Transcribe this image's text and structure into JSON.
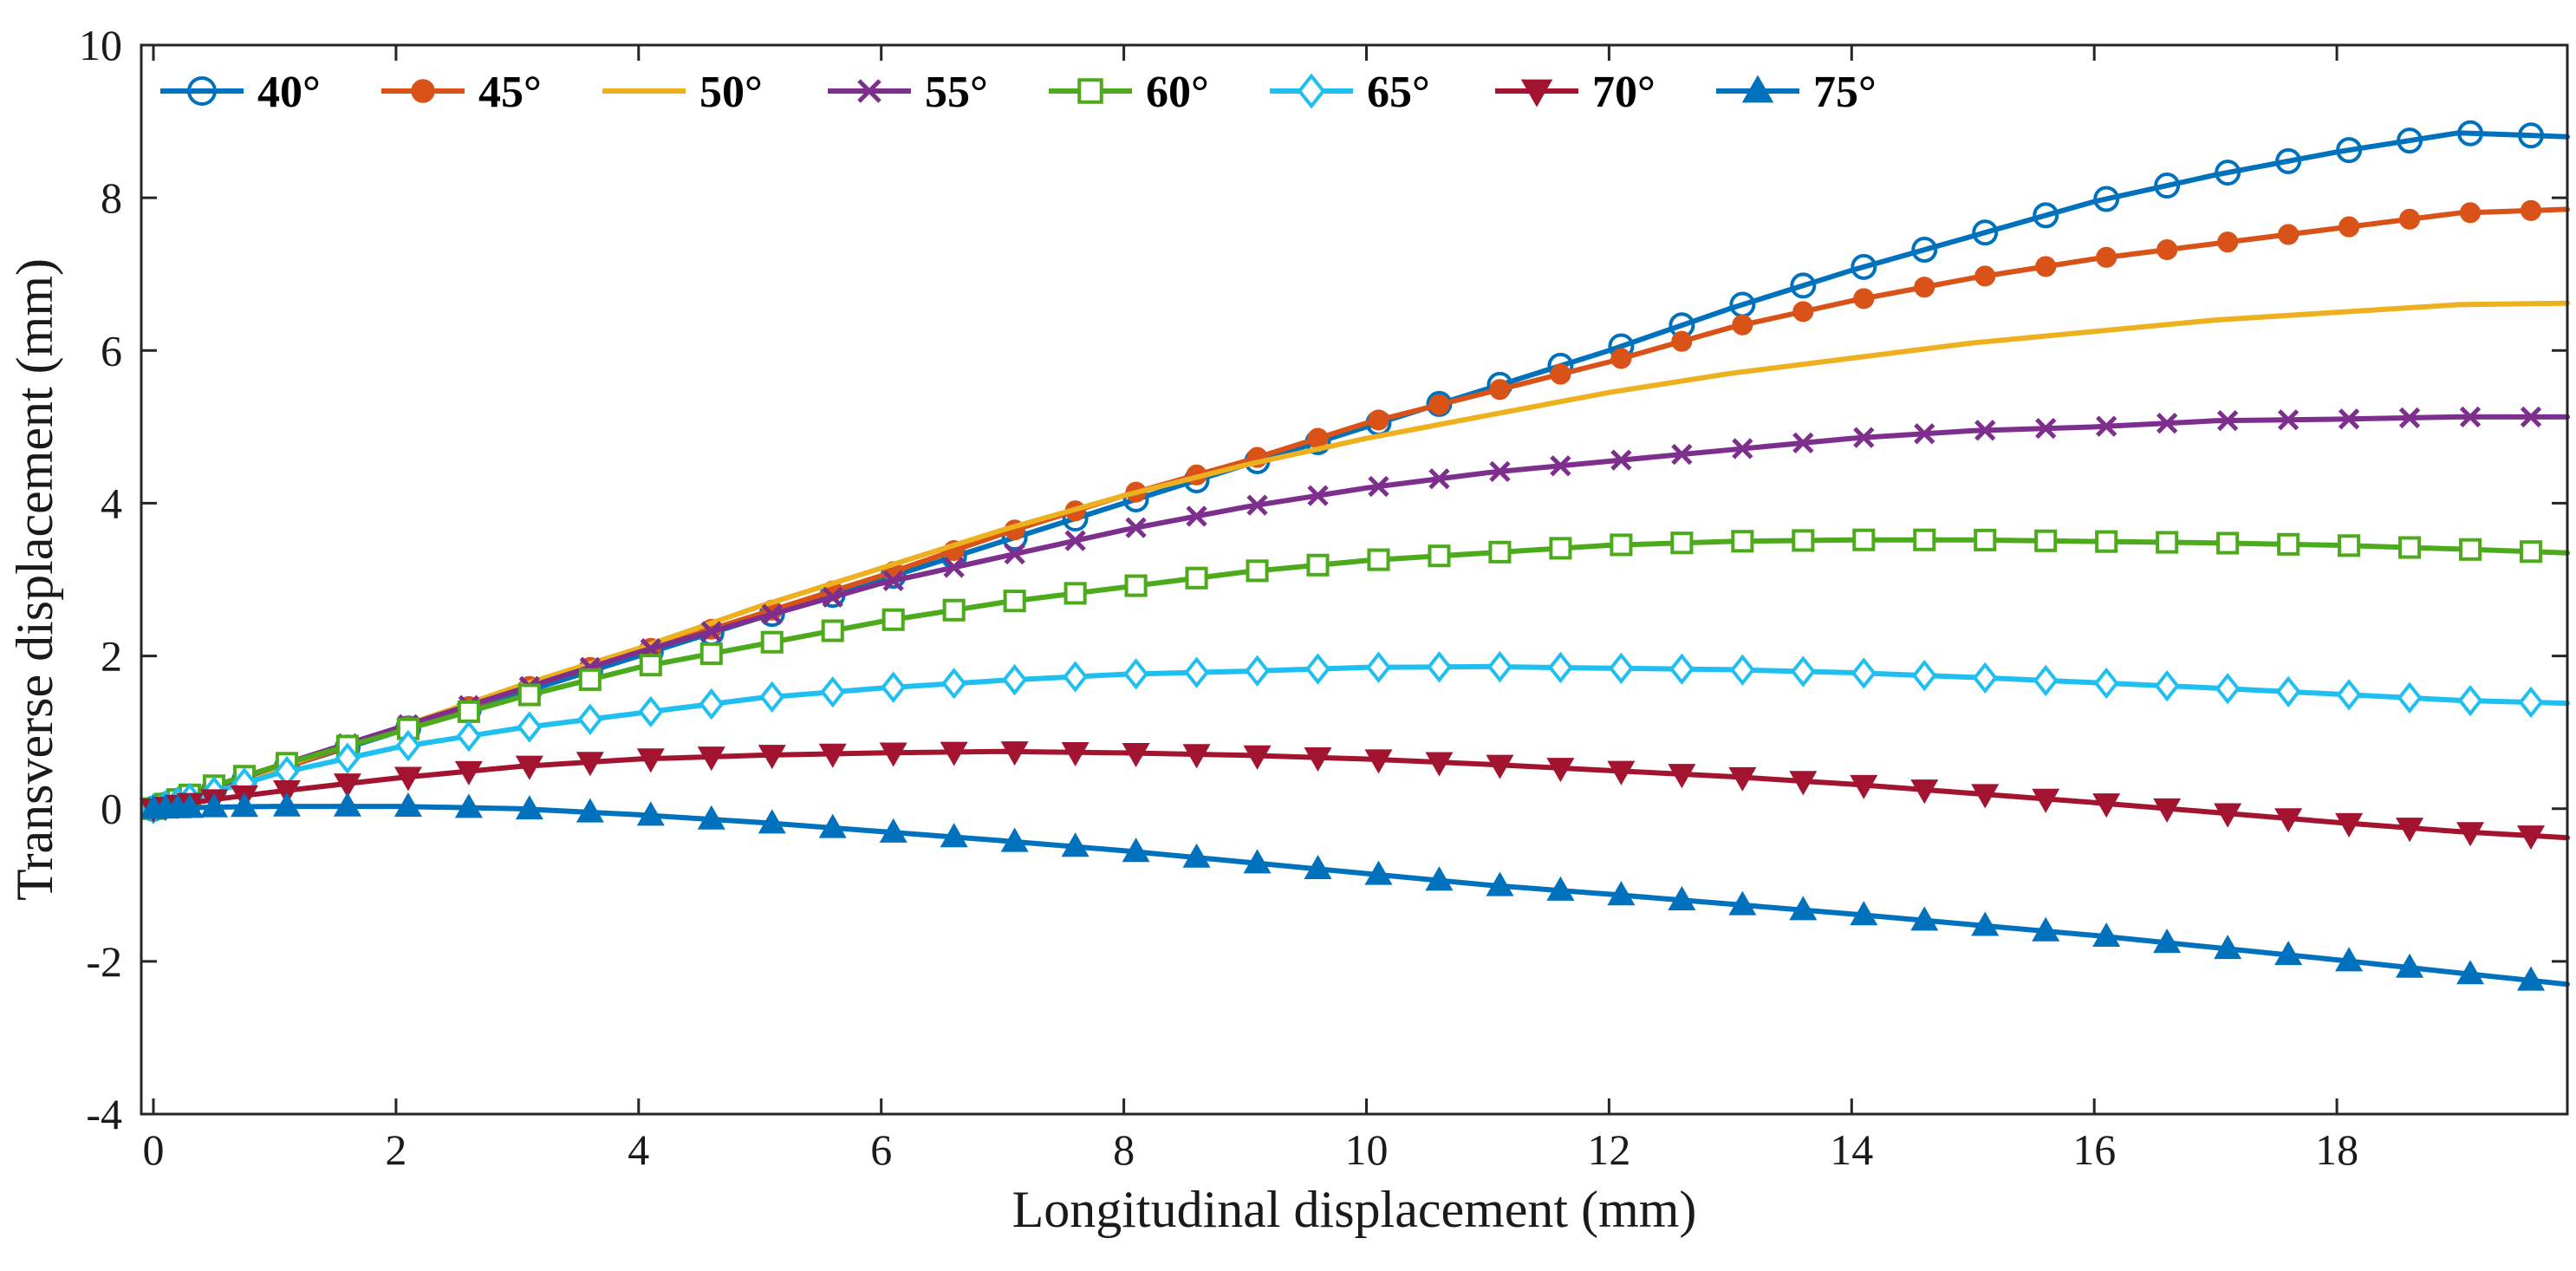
{
  "chart_data": {
    "type": "line",
    "title": "",
    "xlabel": "Longitudinal displacement  (mm)",
    "ylabel": "Transverse displacement  (mm)",
    "xlim": [
      -0.1,
      19.9
    ],
    "ylim": [
      -4,
      10
    ],
    "xticks": [
      0,
      2,
      4,
      6,
      8,
      10,
      12,
      14,
      16,
      18
    ],
    "yticks": [
      -4,
      -2,
      0,
      2,
      4,
      6,
      8,
      10
    ],
    "legend_position": "top-left",
    "series": [
      {
        "name": "40°",
        "color": "#0072BD",
        "marker": "circle",
        "x": [
          0,
          0.5,
          1,
          2,
          3,
          4,
          5,
          6,
          7,
          8,
          9,
          10,
          11,
          12,
          13,
          14,
          15,
          16,
          17,
          18,
          19,
          19.9
        ],
        "y": [
          0,
          0.25,
          0.5,
          1.0,
          1.5,
          2.0,
          2.5,
          3.0,
          3.5,
          4.0,
          4.5,
          5.0,
          5.5,
          6.0,
          6.55,
          7.05,
          7.5,
          7.95,
          8.3,
          8.6,
          8.85,
          8.8
        ]
      },
      {
        "name": "45°",
        "color": "#D95319",
        "marker": "dot",
        "x": [
          0,
          0.5,
          1,
          2,
          3,
          4,
          5,
          6,
          7,
          8,
          9,
          10,
          11,
          12,
          13,
          14,
          15,
          16,
          17,
          18,
          19,
          19.9
        ],
        "y": [
          0,
          0.25,
          0.5,
          1.02,
          1.55,
          2.05,
          2.55,
          3.05,
          3.6,
          4.1,
          4.55,
          5.05,
          5.45,
          5.85,
          6.3,
          6.65,
          6.95,
          7.2,
          7.4,
          7.6,
          7.8,
          7.85
        ]
      },
      {
        "name": "50°",
        "color": "#EDB120",
        "marker": "none",
        "x": [
          0,
          0.5,
          1,
          2,
          3,
          4,
          5,
          6,
          7,
          8,
          9,
          10,
          11,
          12,
          13,
          14,
          15,
          16,
          17,
          18,
          19,
          19.9
        ],
        "y": [
          0,
          0.26,
          0.52,
          1.05,
          1.6,
          2.1,
          2.65,
          3.15,
          3.65,
          4.1,
          4.5,
          4.85,
          5.15,
          5.45,
          5.7,
          5.9,
          6.1,
          6.25,
          6.4,
          6.5,
          6.6,
          6.62
        ]
      },
      {
        "name": "55°",
        "color": "#7E2F8E",
        "marker": "x",
        "x": [
          0,
          0.5,
          1,
          2,
          3,
          4,
          5,
          6,
          7,
          8,
          9,
          10,
          11,
          12,
          13,
          14,
          15,
          16,
          17,
          18,
          19,
          19.9
        ],
        "y": [
          0,
          0.27,
          0.55,
          1.05,
          1.55,
          2.05,
          2.5,
          2.95,
          3.3,
          3.65,
          3.95,
          4.2,
          4.4,
          4.55,
          4.7,
          4.85,
          4.95,
          5.0,
          5.08,
          5.1,
          5.13,
          5.13
        ]
      },
      {
        "name": "60°",
        "color": "#4DAA1C",
        "marker": "square",
        "x": [
          0,
          0.5,
          1,
          2,
          3,
          4,
          5,
          6,
          7,
          8,
          9,
          10,
          11,
          12,
          13,
          14,
          15,
          16,
          17,
          18,
          19,
          19.9
        ],
        "y": [
          0,
          0.3,
          0.55,
          1.0,
          1.45,
          1.85,
          2.15,
          2.45,
          2.7,
          2.9,
          3.1,
          3.25,
          3.35,
          3.45,
          3.5,
          3.52,
          3.52,
          3.5,
          3.48,
          3.45,
          3.4,
          3.35
        ]
      },
      {
        "name": "65°",
        "color": "#1FBFEF",
        "marker": "diamond",
        "x": [
          0,
          0.5,
          1,
          2,
          3,
          4,
          5,
          6,
          7,
          8,
          9,
          10,
          11,
          12,
          13,
          14,
          15,
          16,
          17,
          18,
          19,
          19.9
        ],
        "y": [
          0,
          0.22,
          0.45,
          0.8,
          1.05,
          1.25,
          1.45,
          1.58,
          1.68,
          1.76,
          1.8,
          1.85,
          1.86,
          1.84,
          1.82,
          1.78,
          1.72,
          1.65,
          1.58,
          1.5,
          1.42,
          1.38
        ]
      },
      {
        "name": "70°",
        "color": "#A2142F",
        "marker": "triangle-down",
        "x": [
          0,
          0.5,
          1,
          2,
          3,
          4,
          5,
          6,
          7,
          8,
          9,
          10,
          11,
          12,
          13,
          14,
          15,
          16,
          17,
          18,
          19,
          19.9
        ],
        "y": [
          0,
          0.12,
          0.22,
          0.4,
          0.55,
          0.65,
          0.7,
          0.73,
          0.75,
          0.73,
          0.7,
          0.65,
          0.58,
          0.5,
          0.42,
          0.32,
          0.2,
          0.08,
          -0.05,
          -0.18,
          -0.3,
          -0.38
        ]
      },
      {
        "name": "75°",
        "color": "#0072BD",
        "marker": "triangle-up",
        "x": [
          0,
          0.5,
          1,
          2,
          3,
          4,
          5,
          6,
          7,
          8,
          9,
          10,
          11,
          12,
          13,
          14,
          15,
          16,
          17,
          18,
          19,
          19.9
        ],
        "y": [
          0,
          0.02,
          0.03,
          0.03,
          0.0,
          -0.08,
          -0.18,
          -0.3,
          -0.42,
          -0.55,
          -0.7,
          -0.85,
          -1.0,
          -1.12,
          -1.25,
          -1.38,
          -1.52,
          -1.66,
          -1.82,
          -1.98,
          -2.15,
          -2.3
        ]
      }
    ]
  }
}
